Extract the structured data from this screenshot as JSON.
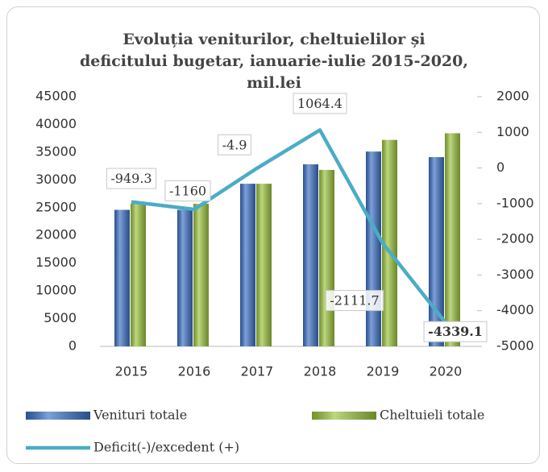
{
  "chart_data": {
    "type": "bar",
    "title": "Evoluția veniturilor, cheltuielilor și deficitului bugetar, ianuarie-iulie 2015-2020, mil.lei",
    "categories": [
      "2015",
      "2016",
      "2017",
      "2018",
      "2019",
      "2020"
    ],
    "series": [
      {
        "name": "Venituri totale",
        "color": "#3a6fc4",
        "type": "bar",
        "values": [
          24600,
          24600,
          29300,
          32800,
          35100,
          34100
        ]
      },
      {
        "name": "Cheltuieli totale",
        "color": "#9bc23c",
        "type": "bar",
        "values": [
          25700,
          25700,
          29300,
          31800,
          37200,
          38400
        ]
      },
      {
        "name": "Deficit(-)/excedent (+)",
        "color": "#4bacc6",
        "type": "line",
        "axis": "y2",
        "values": [
          -949.3,
          -1160,
          -4.9,
          1064.4,
          -2111.7,
          -4339.1
        ]
      }
    ],
    "ylim": [
      0,
      45000
    ],
    "yticks": [
      0,
      5000,
      10000,
      15000,
      20000,
      25000,
      30000,
      35000,
      40000,
      45000
    ],
    "y2lim": [
      -5000,
      2000
    ],
    "y2ticks": [
      -5000,
      -4000,
      -3000,
      -2000,
      -1000,
      0,
      1000,
      2000
    ],
    "grid": false,
    "legend": "bottom"
  }
}
